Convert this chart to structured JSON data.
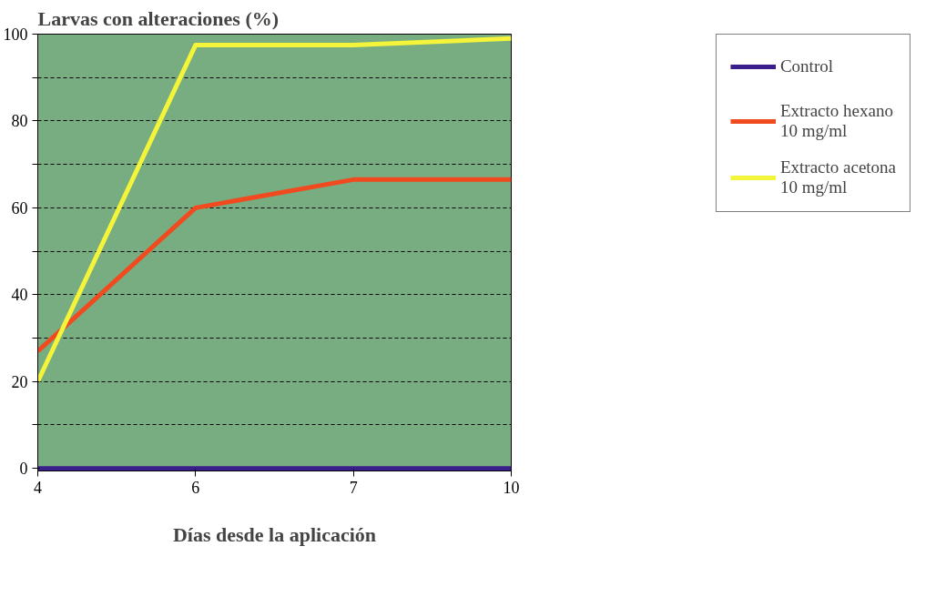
{
  "chart_data": {
    "type": "line",
    "ylabel": "Larvas con alteraciones (%)",
    "xlabel": "Días desde la aplicación",
    "categories": [
      "4",
      "6",
      "7",
      "10"
    ],
    "series": [
      {
        "name": "Control",
        "color": "#3a1f8a",
        "values": [
          0,
          0,
          0,
          0
        ]
      },
      {
        "name": "Extracto hexano\n10 mg/ml",
        "color": "#f04a1e",
        "values": [
          27,
          60,
          66.5,
          66.5
        ]
      },
      {
        "name": "Extracto acetona\n10 mg/ml",
        "color": "#f4f43a",
        "values": [
          20,
          97.5,
          97.5,
          99
        ]
      }
    ],
    "ylim": [
      -0.6,
      100
    ],
    "yticks": [
      0,
      {
        "value": 10,
        "label": null
      },
      20,
      {
        "value": 30,
        "label": null
      },
      40,
      {
        "value": 50,
        "label": null
      },
      60,
      {
        "value": 70,
        "label": null
      },
      80,
      {
        "value": 90,
        "label": null
      },
      100
    ],
    "grid": "y",
    "legend": "right",
    "marker": "none",
    "line_style": "solid"
  }
}
